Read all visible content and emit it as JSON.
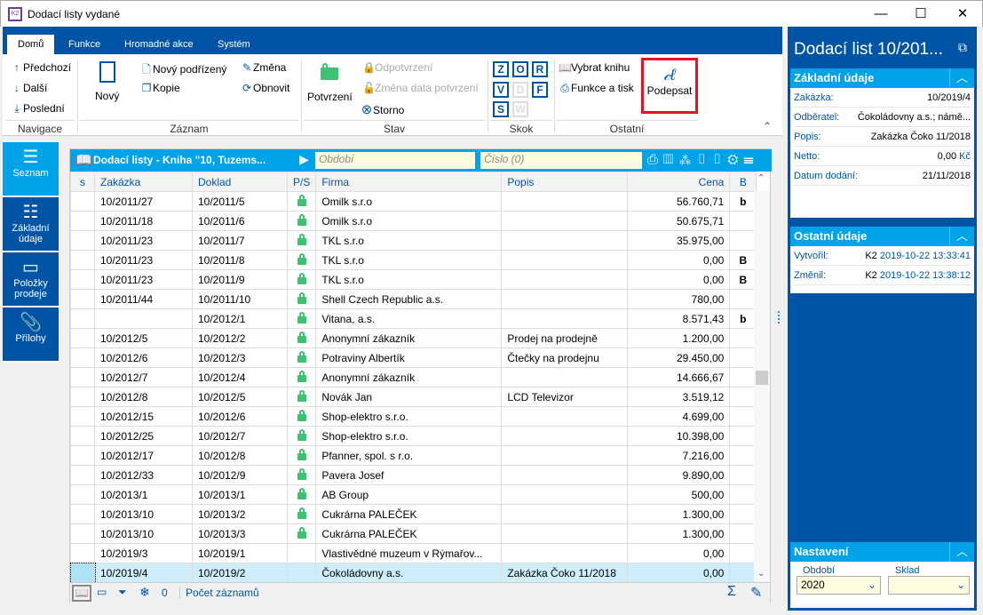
{
  "window": {
    "title": "Dodací listy vydané",
    "logo": "K2",
    "min": "—",
    "max": "☐",
    "close": "✕"
  },
  "tabs": [
    "Domů",
    "Funkce",
    "Hromadné akce",
    "Systém"
  ],
  "ribbon": {
    "nav": {
      "prev": "Předchozí",
      "next": "Další",
      "last": "Poslední",
      "group": "Navigace"
    },
    "record": {
      "new": "Nový",
      "new_child": "Nový podřízený",
      "copy": "Kopie",
      "change": "Změna",
      "refresh": "Obnovit",
      "group": "Záznam"
    },
    "state": {
      "confirm": "Potvrzení",
      "unconfirm": "Odpotvrzení",
      "change_date": "Změna data potvrzení",
      "cancel": "Storno",
      "group": "Stav"
    },
    "jump": {
      "keys": [
        "Z",
        "O",
        "R",
        "V",
        "D",
        "F",
        "S",
        "W"
      ],
      "group": "Skok"
    },
    "other": {
      "choose_book": "Vybrat knihu",
      "functions_print": "Funkce a tisk",
      "sign": "Podepsat",
      "group": "Ostatní"
    }
  },
  "leftnav": [
    {
      "label": "Seznam",
      "icon": "menu-icon"
    },
    {
      "label": "Základní údaje",
      "icon": "list-icon"
    },
    {
      "label": "Položky prodeje",
      "icon": "box-icon"
    },
    {
      "label": "Přílohy",
      "icon": "paperclip-icon"
    }
  ],
  "grid": {
    "title": "Dodací listy - Kniha \"10, Tuzems...",
    "period_placeholder": "Období",
    "number_placeholder": "Číslo (0)",
    "columns": [
      "s",
      "Zakázka",
      "Doklad",
      "P/S",
      "Firma",
      "Popis",
      "Cena",
      "B"
    ],
    "rows": [
      [
        "",
        "10/2011/27",
        "10/2011/5",
        true,
        "Omilk s.r.o",
        "",
        "56.760,71",
        "b"
      ],
      [
        "",
        "10/2011/18",
        "10/2011/6",
        true,
        "Omilk s.r.o",
        "",
        "50.675,71",
        ""
      ],
      [
        "",
        "10/2011/23",
        "10/2011/7",
        true,
        "TKL s.r.o",
        "",
        "35.975,00",
        ""
      ],
      [
        "",
        "10/2011/23",
        "10/2011/8",
        true,
        "TKL s.r.o",
        "",
        "0,00",
        "B"
      ],
      [
        "",
        "10/2011/23",
        "10/2011/9",
        true,
        "TKL s.r.o",
        "",
        "0,00",
        "B"
      ],
      [
        "",
        "10/2011/44",
        "10/2011/10",
        true,
        "Shell Czech Republic a.s.",
        "",
        "780,00",
        ""
      ],
      [
        "",
        "",
        "10/2012/1",
        true,
        "Vitana, a.s.",
        "",
        "8.571,43",
        "b"
      ],
      [
        "",
        "10/2012/5",
        "10/2012/2",
        true,
        "Anonymní zákazník",
        "Prodej na prodejně",
        "1.200,00",
        ""
      ],
      [
        "",
        "10/2012/6",
        "10/2012/3",
        true,
        "Potraviny Albertík",
        "Čtečky na prodejnu",
        "29.450,00",
        ""
      ],
      [
        "",
        "10/2012/7",
        "10/2012/4",
        true,
        "Anonymní zákazník",
        "",
        "14.666,67",
        ""
      ],
      [
        "",
        "10/2012/8",
        "10/2012/5",
        true,
        "Novák Jan",
        "LCD Televizor",
        "3.519,12",
        ""
      ],
      [
        "",
        "10/2012/15",
        "10/2012/6",
        true,
        "Shop-elektro s.r.o.",
        "",
        "4.699,00",
        ""
      ],
      [
        "",
        "10/2012/25",
        "10/2012/7",
        true,
        "Shop-elektro s.r.o.",
        "",
        "10.398,00",
        ""
      ],
      [
        "",
        "10/2012/17",
        "10/2012/8",
        true,
        "Pfanner, spol. s r.o.",
        "",
        "7.216,00",
        ""
      ],
      [
        "",
        "10/2012/33",
        "10/2012/9",
        true,
        "Pavera Josef",
        "",
        "9.890,00",
        ""
      ],
      [
        "",
        "10/2013/1",
        "10/2013/1",
        true,
        "AB Group",
        "",
        "500,00",
        ""
      ],
      [
        "",
        "10/2013/10",
        "10/2013/2",
        true,
        "Cukrárna PALEČEK",
        "",
        "1.300,00",
        ""
      ],
      [
        "",
        "10/2013/10",
        "10/2013/3",
        true,
        "Cukrárna PALEČEK",
        "",
        "1.300,00",
        ""
      ],
      [
        "",
        "10/2019/3",
        "10/2019/1",
        false,
        "Vlastivědné muzeum v Rýmařov...",
        "",
        "0,00",
        ""
      ],
      [
        "",
        "10/2019/4",
        "10/2019/2",
        false,
        "Čokoládovny a.s.",
        "Zakázka Čoko 11/2018",
        "0,00",
        ""
      ]
    ],
    "selected_row": 19,
    "footer": {
      "filter_count": "0",
      "record_count": "Počet záznamů"
    }
  },
  "detail": {
    "title": "Dodací list 10/201...",
    "basic": {
      "header": "Základní údaje",
      "fields": [
        [
          "Zakázka:",
          "10/2019/4"
        ],
        [
          "Odběratel:",
          "Čokoládovny a.s.; námě..."
        ],
        [
          "Popis:",
          "Zakázka Čoko 11/2018"
        ],
        [
          "Netto:",
          "0,00"
        ],
        [
          "Datum dodání:",
          "21/11/2018"
        ]
      ],
      "currency": "Kč"
    },
    "other": {
      "header": "Ostatní údaje",
      "fields": [
        [
          "Vytvořil:",
          "K2",
          "2019-10-22 13:33:41"
        ],
        [
          "Změnil:",
          "K2",
          "2019-10-22 13:38:12"
        ]
      ]
    },
    "settings": {
      "header": "Nastavení",
      "period_label": "Období",
      "period_value": "2020",
      "store_label": "Sklad",
      "store_value": ""
    }
  },
  "colors": {
    "brand": "#0054a6",
    "accent": "#00a2e8",
    "lock": "#3cc270",
    "highlight": "#e81123"
  }
}
